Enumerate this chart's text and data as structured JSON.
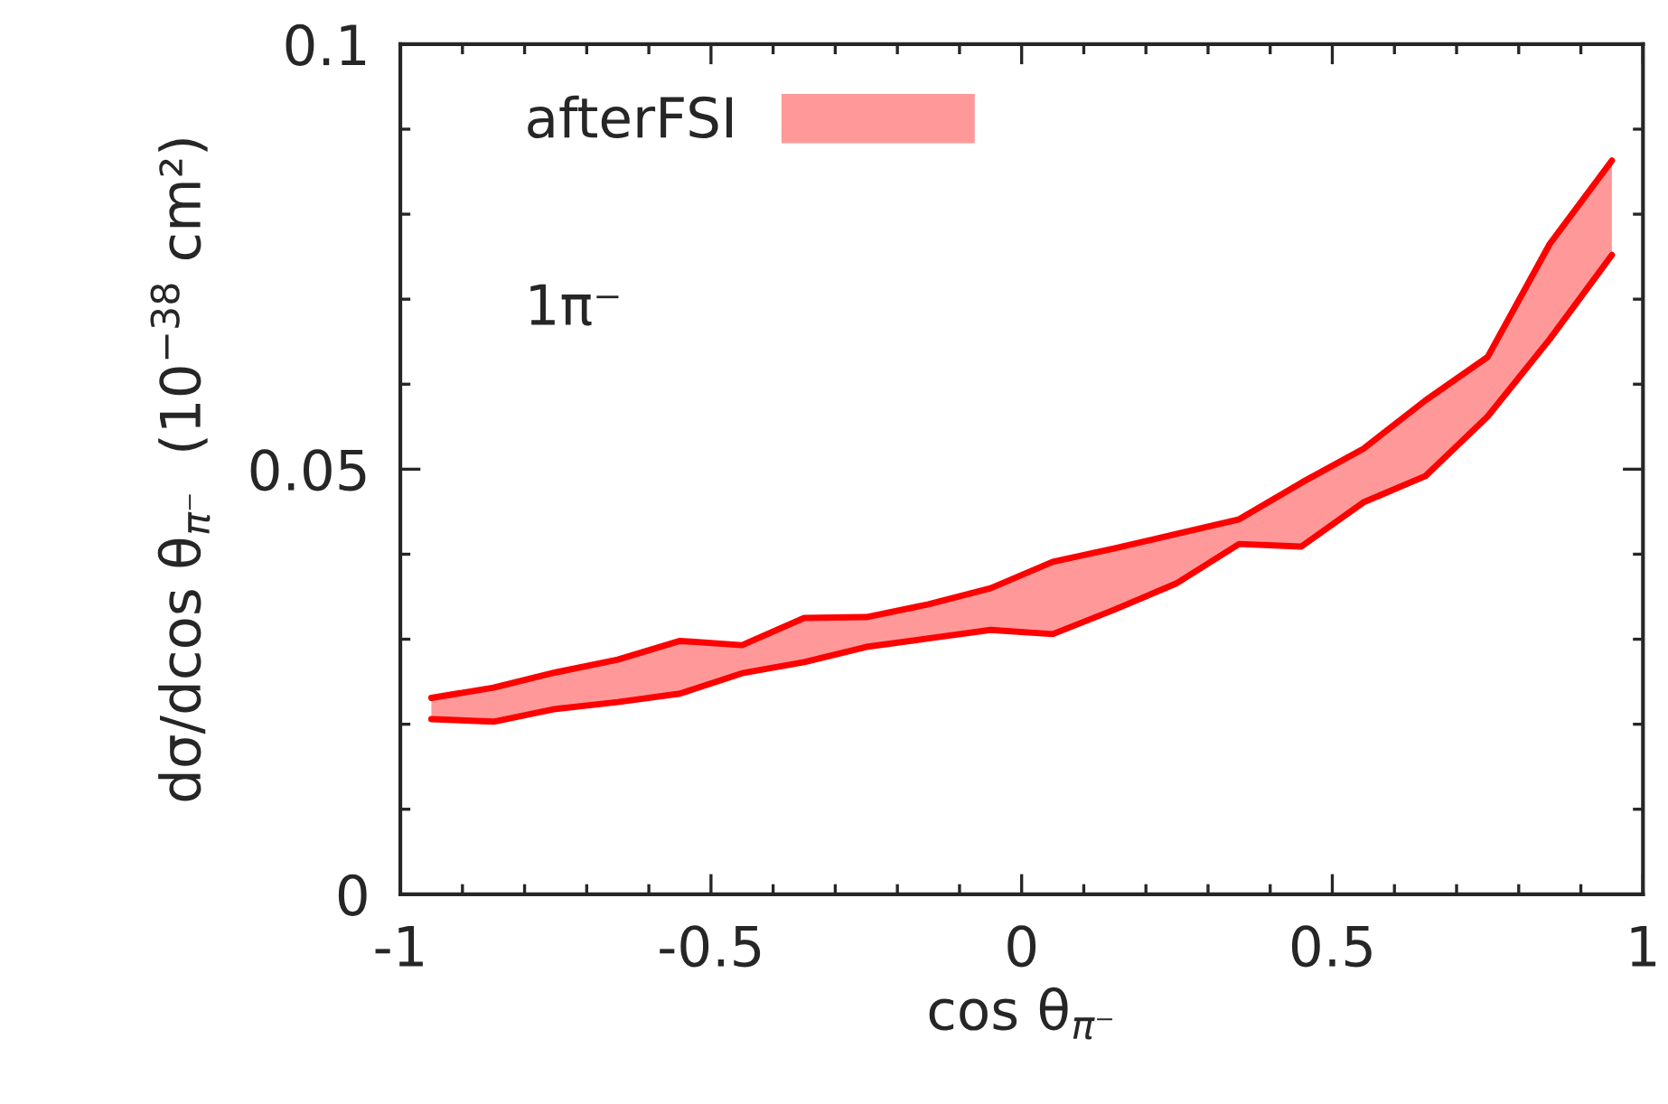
{
  "chart_data": {
    "type": "area",
    "xlabel": "cos θ$_{π⁻}$",
    "ylabel": "dσ/dcos θ$_{π⁻}$  (10$^{−38}$ cm²)",
    "annotations": [
      "1π⁻"
    ],
    "x": [
      -0.95,
      -0.85,
      -0.75,
      -0.65,
      -0.55,
      -0.45,
      -0.35,
      -0.25,
      -0.15,
      -0.05,
      0.05,
      0.15,
      0.25,
      0.35,
      0.45,
      0.55,
      0.65,
      0.75,
      0.85,
      0.95
    ],
    "series": [
      {
        "name": "afterFSI",
        "color": "#ff9999",
        "values": [
          0.0231,
          0.0243,
          0.0261,
          0.0276,
          0.0298,
          0.0293,
          0.0325,
          0.0326,
          0.0341,
          0.036,
          0.0391,
          0.0407,
          0.0424,
          0.0441,
          0.0484,
          0.0524,
          0.0581,
          0.0632,
          0.0765,
          0.0863
        ]
      },
      {
        "type": "line",
        "color": "#ff0000",
        "values": [
          0.0206,
          0.0203,
          0.0218,
          0.0226,
          0.0236,
          0.026,
          0.0273,
          0.0291,
          0.0301,
          0.0311,
          0.0306,
          0.0335,
          0.0366,
          0.0412,
          0.0409,
          0.0461,
          0.0492,
          0.0562,
          0.0653,
          0.0752
        ]
      }
    ],
    "xlim": [
      -1,
      1
    ],
    "xticks": [
      -1,
      -0.5,
      0,
      0.5,
      1
    ],
    "ylim": [
      0,
      0.1
    ],
    "yticks": [
      0,
      0.05,
      0.1
    ],
    "grid": false,
    "legend": "top left"
  }
}
